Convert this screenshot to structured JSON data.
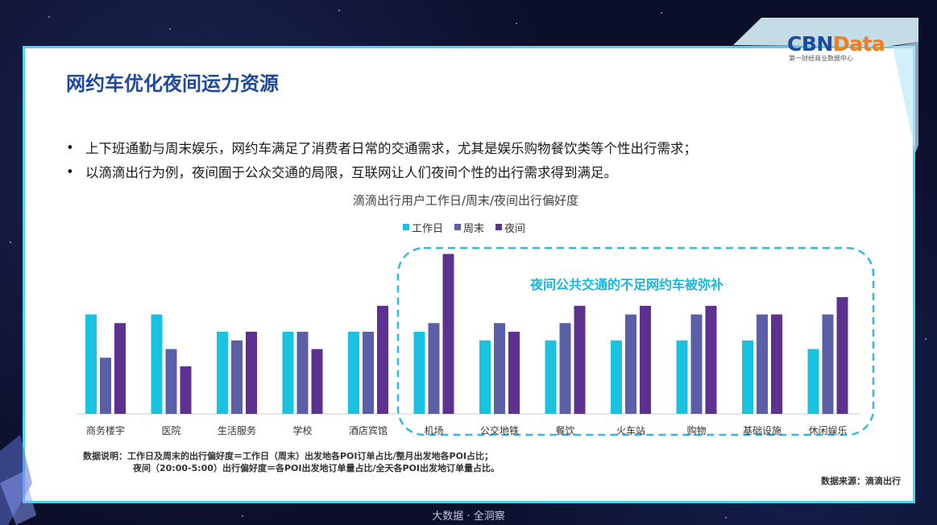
{
  "logo": {
    "main_cbn": "CBN",
    "main_data": "Data",
    "subtitle": "第一财经商业数据中心"
  },
  "title": "网约车优化夜间运力资源",
  "bullets": [
    "上下班通勤与周末娱乐，网约车满足了消费者日常的交通需求，尤其是娱乐购物餐饮类等个性出行需求；",
    "以滴滴出行为例，夜间囿于公众交通的局限，互联网让人们夜间个性的出行需求得到满足。"
  ],
  "bullet_glyph": "•",
  "highlight_label": "夜间公共交通的不足网约车被弥补",
  "note_line1": "数据说明：工作日及周末的出行偏好度＝工作日（周末）出发地各POI订单占比/整月出发地各POI占比；",
  "note_line2": "夜间（20:00-5:00）出行偏好度＝各POI出发地订单量占比/全天各POI出发地订单量占比。",
  "source": "数据来源：滴滴出行",
  "footer": "大数据 · 全洞察",
  "colors": {
    "workday": "#19c3e0",
    "weekend": "#5b5fa8",
    "night": "#5c3190",
    "title": "#1d4a9c",
    "accent": "#4fd3f2",
    "logo_cbn": "#1d4a9c",
    "logo_data": "#f07c1e"
  },
  "chart_data": {
    "type": "bar",
    "title": "滴滴出行用户工作日/周末/夜间出行偏好度",
    "categories": [
      "商务楼宇",
      "医院",
      "生活服务",
      "学校",
      "酒店宾馆",
      "机场",
      "公交地铁",
      "餐饮",
      "火车站",
      "购物",
      "基础设施",
      "休闲娱乐"
    ],
    "series": [
      {
        "name": "工作日",
        "values": [
          1.15,
          1.15,
          0.95,
          0.95,
          0.95,
          0.95,
          0.85,
          0.85,
          0.85,
          0.85,
          0.85,
          0.75
        ]
      },
      {
        "name": "周末",
        "values": [
          0.65,
          0.75,
          0.85,
          0.95,
          0.95,
          1.05,
          1.05,
          1.05,
          1.15,
          1.15,
          1.15,
          1.15
        ]
      },
      {
        "name": "夜间",
        "values": [
          1.05,
          0.55,
          0.95,
          0.75,
          1.25,
          1.85,
          0.95,
          1.25,
          1.25,
          1.25,
          1.15,
          1.35
        ]
      }
    ],
    "ylim": [
      0,
      1.9
    ],
    "legend_position": "top-center",
    "grid": false,
    "xlabel": "",
    "ylabel": ""
  }
}
